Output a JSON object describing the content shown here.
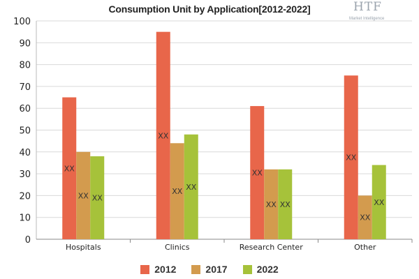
{
  "chart_data": {
    "type": "bar",
    "title": "Consumption Unit by  Application[2012-2022]",
    "categories": [
      "Hospitals",
      "Clinics",
      "Research Center",
      "Other"
    ],
    "series": [
      {
        "name": "2012",
        "color": "#e8664a",
        "values": [
          65,
          95,
          61,
          75
        ]
      },
      {
        "name": "2017",
        "color": "#d39b4e",
        "values": [
          40,
          44,
          32,
          20
        ]
      },
      {
        "name": "2022",
        "color": "#a6c23a",
        "values": [
          38,
          48,
          32,
          34
        ]
      }
    ],
    "data_labels": [
      [
        "XX",
        "XX",
        "XX",
        "XX"
      ],
      [
        "XX",
        "XX",
        "XX",
        "XX"
      ],
      [
        "XX",
        "XX",
        "XX",
        "XX"
      ]
    ],
    "ylim": [
      0,
      100
    ],
    "yticks": [
      0,
      10,
      20,
      30,
      40,
      50,
      60,
      70,
      80,
      90,
      100
    ],
    "xlabel": "",
    "ylabel": "",
    "grid": true,
    "legend_position": "bottom"
  },
  "logo": {
    "brand": "HTF",
    "tagline": "Market Intelligence"
  }
}
